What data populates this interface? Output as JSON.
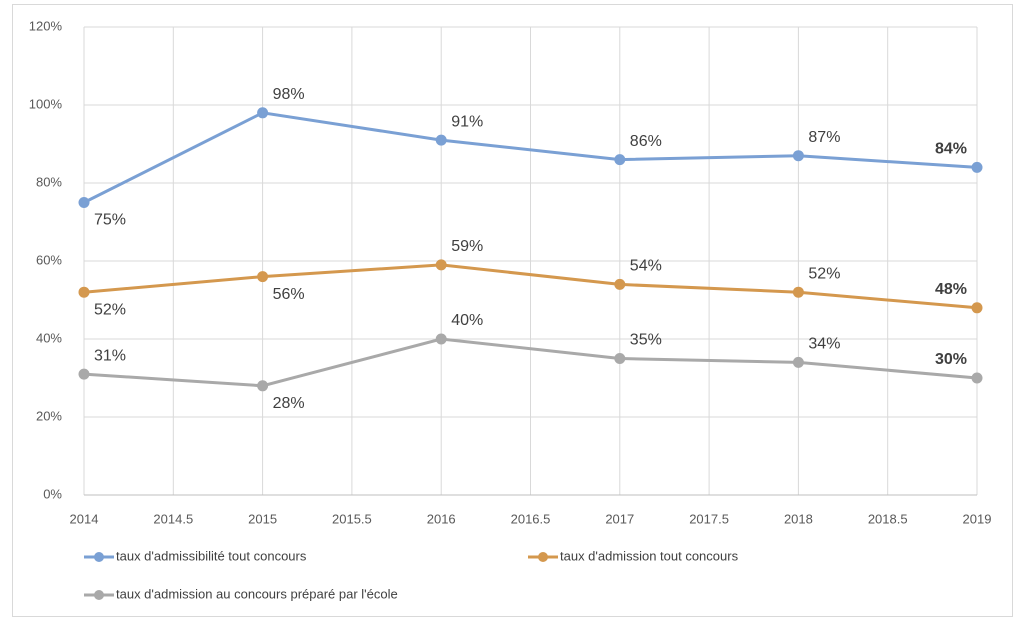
{
  "chart_data": {
    "type": "line",
    "x": [
      2014,
      2015,
      2016,
      2017,
      2018,
      2019
    ],
    "xlim": [
      2014,
      2019
    ],
    "xticks": [
      2014,
      2014.5,
      2015,
      2015.5,
      2016,
      2016.5,
      2017,
      2017.5,
      2018,
      2018.5,
      2019
    ],
    "ylim": [
      0,
      120
    ],
    "yticks": [
      {
        "value": 0,
        "label": "0%"
      },
      {
        "value": 20,
        "label": "20%"
      },
      {
        "value": 40,
        "label": "40%"
      },
      {
        "value": 60,
        "label": "60%"
      },
      {
        "value": 80,
        "label": "80%"
      },
      {
        "value": 100,
        "label": "100%"
      },
      {
        "value": 120,
        "label": "120%"
      }
    ],
    "grid": true,
    "legend": "bottom",
    "series": [
      {
        "name": "taux d'admissibilité tout concours",
        "color": "#7aa0d4",
        "values": [
          75,
          98,
          91,
          86,
          87,
          84
        ],
        "value_labels": [
          "75%",
          "98%",
          "91%",
          "86%",
          "87%",
          "84%"
        ]
      },
      {
        "name": "taux d'admission tout concours",
        "color": "#d4984e",
        "values": [
          52,
          56,
          59,
          54,
          52,
          48
        ],
        "value_labels": [
          "52%",
          "56%",
          "59%",
          "54%",
          "52%",
          "48%"
        ]
      },
      {
        "name": "taux d'admission au concours préparé par l'école",
        "color": "#a9a9a9",
        "values": [
          31,
          28,
          40,
          35,
          34,
          30
        ],
        "value_labels": [
          "31%",
          "28%",
          "40%",
          "35%",
          "34%",
          "30%"
        ]
      }
    ]
  }
}
